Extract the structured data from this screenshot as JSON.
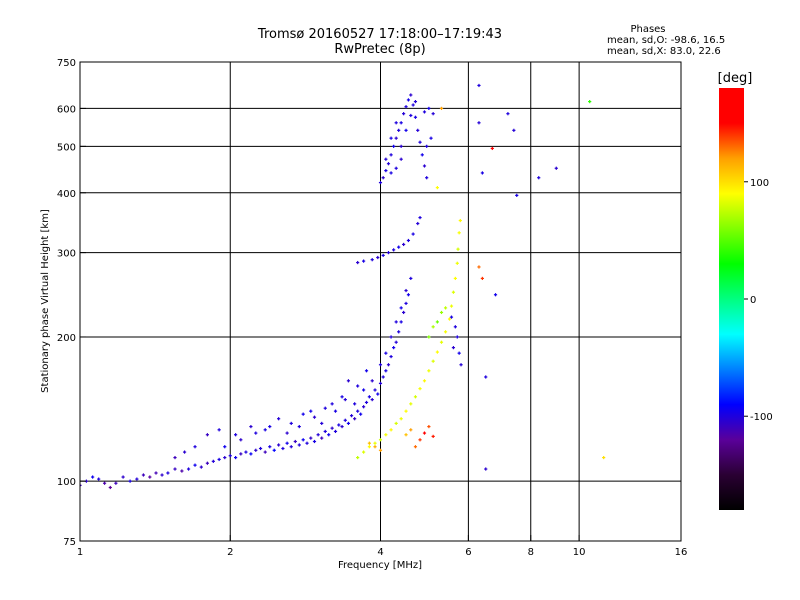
{
  "header": {
    "title": "Tromsø 20160527 17:18:00–17:19:43",
    "subtitle": "RwPretec (8p)"
  },
  "stats": {
    "heading": "Phases",
    "line_o": "mean, sd,O: -98.6, 16.5",
    "line_x": "mean, sd,X:  83.0, 22.6"
  },
  "colorbar": {
    "label": "[deg]",
    "range": [
      -180,
      180
    ],
    "ticks": [
      {
        "value": 100,
        "label": "100"
      },
      {
        "value": 0,
        "label": "0"
      },
      {
        "value": -100,
        "label": "-100"
      }
    ],
    "colors": [
      "#000000",
      "#2a0033",
      "#5a009a",
      "#0000ff",
      "#0080ff",
      "#00ffff",
      "#00ff80",
      "#00ff00",
      "#80ff00",
      "#ffff00",
      "#ffa000",
      "#ff0000",
      "#ff0000"
    ]
  },
  "chart_data": {
    "type": "scatter",
    "title": "Tromsø 20160527 17:18:00–17:19:43",
    "subtitle": "RwPretec (8p)",
    "xlabel": "Frequency [MHz]",
    "ylabel": "Stationary phase Virtual Height [km]",
    "xscale": "log",
    "yscale": "log",
    "xlim": [
      1,
      16
    ],
    "ylim": [
      75,
      750
    ],
    "grid": true,
    "xticks": [
      {
        "value": 1,
        "label": "1"
      },
      {
        "value": 2,
        "label": "2"
      },
      {
        "value": 4,
        "label": "4"
      },
      {
        "value": 6,
        "label": "6"
      },
      {
        "value": 8,
        "label": "8"
      },
      {
        "value": 10,
        "label": "10"
      },
      {
        "value": 16,
        "label": "16"
      }
    ],
    "yticks": [
      {
        "value": 75,
        "label": "75"
      },
      {
        "value": 100,
        "label": "100"
      },
      {
        "value": 200,
        "label": "200"
      },
      {
        "value": 300,
        "label": "300"
      },
      {
        "value": 400,
        "label": "400"
      },
      {
        "value": 500,
        "label": "500"
      },
      {
        "value": 600,
        "label": "600"
      },
      {
        "value": 750,
        "label": "750"
      }
    ],
    "color_variable": "phase [deg]",
    "series": [
      {
        "mode": "O",
        "points": [
          [
            1.0,
            98,
            -110
          ],
          [
            1.03,
            100,
            -105
          ],
          [
            1.06,
            102,
            -95
          ],
          [
            1.09,
            101,
            -100
          ],
          [
            1.12,
            99,
            -115
          ],
          [
            1.15,
            97,
            -120
          ],
          [
            1.18,
            99,
            -110
          ],
          [
            1.22,
            102,
            -105
          ],
          [
            1.26,
            100,
            -98
          ],
          [
            1.3,
            101,
            -102
          ],
          [
            1.34,
            103,
            -110
          ],
          [
            1.38,
            102,
            -118
          ],
          [
            1.42,
            104,
            -112
          ],
          [
            1.46,
            103,
            -105
          ],
          [
            1.5,
            104,
            -100
          ],
          [
            1.55,
            106,
            -108
          ],
          [
            1.6,
            105,
            -115
          ],
          [
            1.65,
            106,
            -100
          ],
          [
            1.7,
            108,
            -95
          ],
          [
            1.75,
            107,
            -105
          ],
          [
            1.8,
            109,
            -110
          ],
          [
            1.85,
            110,
            -102
          ],
          [
            1.9,
            111,
            -98
          ],
          [
            1.95,
            112,
            -104
          ],
          [
            2.0,
            113,
            -100
          ],
          [
            2.05,
            112,
            -95
          ],
          [
            2.1,
            114,
            -108
          ],
          [
            2.15,
            115,
            -100
          ],
          [
            2.2,
            114,
            -92
          ],
          [
            2.25,
            116,
            -105
          ],
          [
            2.3,
            117,
            -100
          ],
          [
            2.35,
            115,
            -110
          ],
          [
            2.4,
            118,
            -98
          ],
          [
            2.45,
            116,
            -90
          ],
          [
            2.5,
            119,
            -104
          ],
          [
            2.55,
            117,
            -100
          ],
          [
            2.6,
            120,
            -96
          ],
          [
            2.65,
            118,
            -102
          ],
          [
            2.7,
            121,
            -108
          ],
          [
            2.75,
            119,
            -100
          ],
          [
            2.8,
            122,
            -94
          ],
          [
            2.85,
            120,
            -100
          ],
          [
            2.9,
            123,
            -106
          ],
          [
            2.95,
            121,
            -98
          ],
          [
            3.0,
            125,
            -102
          ],
          [
            3.05,
            123,
            -110
          ],
          [
            3.1,
            127,
            -100
          ],
          [
            3.15,
            125,
            -95
          ],
          [
            3.2,
            129,
            -105
          ],
          [
            3.25,
            127,
            -100
          ],
          [
            3.3,
            131,
            -98
          ],
          [
            3.35,
            130,
            -104
          ],
          [
            3.4,
            134,
            -100
          ],
          [
            3.45,
            132,
            -96
          ],
          [
            3.5,
            137,
            -102
          ],
          [
            3.55,
            135,
            -108
          ],
          [
            3.6,
            140,
            -100
          ],
          [
            3.65,
            138,
            -95
          ],
          [
            3.7,
            143,
            -104
          ],
          [
            3.75,
            146,
            -100
          ],
          [
            3.8,
            150,
            -98
          ],
          [
            3.85,
            148,
            -104
          ],
          [
            3.9,
            155,
            -100
          ],
          [
            3.95,
            152,
            -96
          ],
          [
            4.0,
            160,
            -102
          ],
          [
            4.05,
            165,
            -100
          ],
          [
            4.1,
            170,
            -98
          ],
          [
            4.15,
            175,
            -104
          ],
          [
            4.2,
            182,
            -100
          ],
          [
            4.25,
            190,
            -96
          ],
          [
            4.3,
            195,
            -102
          ],
          [
            4.35,
            205,
            -100
          ],
          [
            4.4,
            215,
            -98
          ],
          [
            4.45,
            225,
            -104
          ],
          [
            4.5,
            235,
            -100
          ],
          [
            4.55,
            245,
            -96
          ],
          [
            2.05,
            125,
            -100
          ],
          [
            2.2,
            130,
            -104
          ],
          [
            2.35,
            128,
            -98
          ],
          [
            2.5,
            135,
            -102
          ],
          [
            2.65,
            132,
            -100
          ],
          [
            2.8,
            138,
            -96
          ],
          [
            2.95,
            136,
            -104
          ],
          [
            3.1,
            142,
            -100
          ],
          [
            3.25,
            140,
            -98
          ],
          [
            3.4,
            148,
            -102
          ],
          [
            3.55,
            145,
            -100
          ],
          [
            3.7,
            155,
            -96
          ],
          [
            3.85,
            162,
            -104
          ],
          [
            4.0,
            175,
            -100
          ],
          [
            4.1,
            185,
            -98
          ],
          [
            4.2,
            200,
            -102
          ],
          [
            4.3,
            215,
            -100
          ],
          [
            4.4,
            230,
            -96
          ],
          [
            4.5,
            250,
            -104
          ],
          [
            4.6,
            265,
            -100
          ],
          [
            1.55,
            112,
            -110
          ],
          [
            1.62,
            115,
            -104
          ],
          [
            1.7,
            118,
            -100
          ],
          [
            1.8,
            125,
            -108
          ],
          [
            1.9,
            128,
            -100
          ],
          [
            1.95,
            118,
            -95
          ],
          [
            2.1,
            122,
            -105
          ],
          [
            2.25,
            126,
            -100
          ],
          [
            2.4,
            130,
            -98
          ],
          [
            2.6,
            126,
            -104
          ],
          [
            2.75,
            130,
            -100
          ],
          [
            2.9,
            140,
            -96
          ],
          [
            3.05,
            132,
            -102
          ],
          [
            3.2,
            145,
            -100
          ],
          [
            3.35,
            150,
            -98
          ],
          [
            3.45,
            162,
            -104
          ],
          [
            3.6,
            158,
            -100
          ],
          [
            3.75,
            170,
            -96
          ],
          [
            3.85,
            290,
            -100
          ],
          [
            3.95,
            293,
            -104
          ],
          [
            4.05,
            296,
            -98
          ],
          [
            4.15,
            300,
            -102
          ],
          [
            4.25,
            304,
            -100
          ],
          [
            4.35,
            308,
            -96
          ],
          [
            4.45,
            312,
            -104
          ],
          [
            4.55,
            318,
            -100
          ],
          [
            4.65,
            328,
            -98
          ],
          [
            4.75,
            345,
            -102
          ],
          [
            4.8,
            355,
            -100
          ],
          [
            3.6,
            286,
            -104
          ],
          [
            3.7,
            288,
            -98
          ],
          [
            4.0,
            420,
            -100
          ],
          [
            4.05,
            430,
            -104
          ],
          [
            4.1,
            445,
            -98
          ],
          [
            4.15,
            460,
            -102
          ],
          [
            4.2,
            480,
            -100
          ],
          [
            4.25,
            500,
            -96
          ],
          [
            4.3,
            520,
            -104
          ],
          [
            4.35,
            540,
            -100
          ],
          [
            4.4,
            560,
            -98
          ],
          [
            4.45,
            585,
            -102
          ],
          [
            4.5,
            605,
            -100
          ],
          [
            4.55,
            625,
            -96
          ],
          [
            4.6,
            640,
            -104
          ],
          [
            4.65,
            610,
            -100
          ],
          [
            4.7,
            575,
            -98
          ],
          [
            4.75,
            540,
            -102
          ],
          [
            4.8,
            510,
            -100
          ],
          [
            4.85,
            480,
            -96
          ],
          [
            4.9,
            455,
            -104
          ],
          [
            4.95,
            430,
            -100
          ],
          [
            4.1,
            470,
            -102
          ],
          [
            4.2,
            520,
            -98
          ],
          [
            4.3,
            560,
            -100
          ],
          [
            4.4,
            500,
            -104
          ],
          [
            4.5,
            540,
            -96
          ],
          [
            4.6,
            580,
            -100
          ],
          [
            4.7,
            620,
            -102
          ],
          [
            4.2,
            440,
            -98
          ],
          [
            4.3,
            450,
            -100
          ],
          [
            4.4,
            470,
            -104
          ],
          [
            4.9,
            590,
            -100
          ],
          [
            5.0,
            600,
            -96
          ],
          [
            5.1,
            585,
            -102
          ],
          [
            4.95,
            500,
            -100
          ],
          [
            5.05,
            520,
            -98
          ],
          [
            5.6,
            190,
            -104
          ],
          [
            5.7,
            200,
            -100
          ],
          [
            5.75,
            185,
            -96
          ],
          [
            5.8,
            175,
            -102
          ],
          [
            5.65,
            210,
            -100
          ],
          [
            5.55,
            220,
            -98
          ],
          [
            6.3,
            670,
            -100
          ],
          [
            6.3,
            560,
            -102
          ],
          [
            6.4,
            440,
            -98
          ],
          [
            6.5,
            165,
            -100
          ],
          [
            6.5,
            106,
            -104
          ],
          [
            6.8,
            245,
            -96
          ],
          [
            7.2,
            585,
            -100
          ],
          [
            7.4,
            540,
            -102
          ],
          [
            7.5,
            395,
            -98
          ],
          [
            8.3,
            430,
            -100
          ],
          [
            9.0,
            450,
            -104
          ]
        ]
      },
      {
        "mode": "X",
        "points": [
          [
            3.6,
            112,
            75
          ],
          [
            3.7,
            115,
            82
          ],
          [
            3.8,
            118,
            90
          ],
          [
            3.9,
            120,
            85
          ],
          [
            4.0,
            122,
            78
          ],
          [
            4.1,
            125,
            88
          ],
          [
            4.2,
            128,
            92
          ],
          [
            4.3,
            132,
            80
          ],
          [
            4.4,
            135,
            86
          ],
          [
            4.5,
            140,
            90
          ],
          [
            4.6,
            145,
            84
          ],
          [
            4.7,
            150,
            80
          ],
          [
            4.8,
            156,
            88
          ],
          [
            4.9,
            162,
            92
          ],
          [
            5.0,
            170,
            86
          ],
          [
            5.1,
            178,
            82
          ],
          [
            5.2,
            186,
            90
          ],
          [
            5.3,
            195,
            84
          ],
          [
            5.4,
            205,
            88
          ],
          [
            5.5,
            218,
            92
          ],
          [
            5.55,
            232,
            86
          ],
          [
            5.6,
            248,
            82
          ],
          [
            5.65,
            265,
            90
          ],
          [
            5.7,
            285,
            86
          ],
          [
            5.72,
            305,
            80
          ],
          [
            5.75,
            330,
            88
          ],
          [
            5.78,
            350,
            92
          ],
          [
            4.7,
            118,
            130
          ],
          [
            4.8,
            122,
            140
          ],
          [
            4.9,
            126,
            150
          ],
          [
            5.0,
            130,
            135
          ],
          [
            5.1,
            124,
            145
          ],
          [
            4.6,
            128,
            120
          ],
          [
            4.5,
            125,
            110
          ],
          [
            5.0,
            200,
            60
          ],
          [
            5.1,
            210,
            70
          ],
          [
            5.2,
            215,
            55
          ],
          [
            5.3,
            225,
            65
          ],
          [
            5.4,
            230,
            75
          ],
          [
            3.8,
            120,
            110
          ],
          [
            3.9,
            118,
            115
          ],
          [
            4.0,
            116,
            120
          ],
          [
            6.3,
            280,
            130
          ],
          [
            6.4,
            265,
            140
          ],
          [
            6.7,
            495,
            150
          ],
          [
            5.2,
            410,
            90
          ],
          [
            5.3,
            600,
            120
          ],
          [
            10.5,
            620,
            40
          ],
          [
            11.2,
            112,
            100
          ]
        ]
      }
    ]
  }
}
